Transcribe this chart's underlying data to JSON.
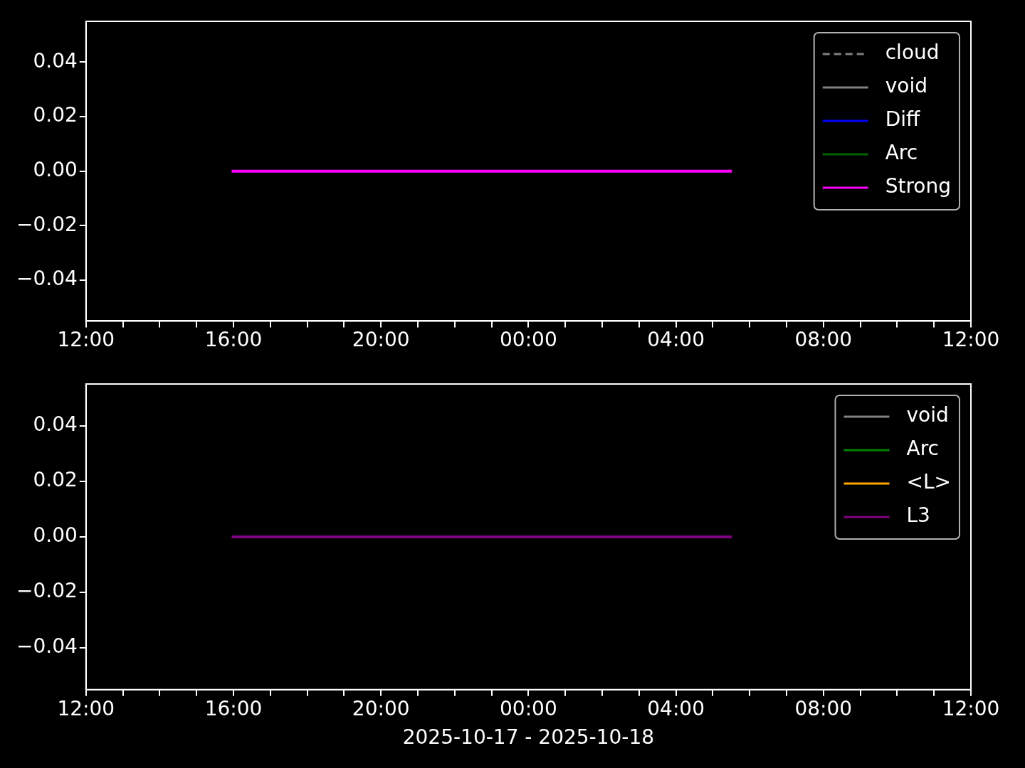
{
  "chart_data": [
    {
      "type": "line",
      "legend": "top right",
      "x": [
        "2025-10-17T15:57",
        "2025-10-18T05:31"
      ],
      "xlim": [
        "2025-10-17T12:00",
        "2025-10-18T12:00"
      ],
      "xticks": [
        {
          "value": "2025-10-17T12:00",
          "label": "12:00"
        },
        {
          "value": "2025-10-17T13:00",
          "label": null
        },
        {
          "value": "2025-10-17T14:00",
          "label": null
        },
        {
          "value": "2025-10-17T15:00",
          "label": null
        },
        {
          "value": "2025-10-17T16:00",
          "label": "16:00"
        },
        {
          "value": "2025-10-17T17:00",
          "label": null
        },
        {
          "value": "2025-10-17T18:00",
          "label": null
        },
        {
          "value": "2025-10-17T19:00",
          "label": null
        },
        {
          "value": "2025-10-17T20:00",
          "label": "20:00"
        },
        {
          "value": "2025-10-17T21:00",
          "label": null
        },
        {
          "value": "2025-10-17T22:00",
          "label": null
        },
        {
          "value": "2025-10-17T23:00",
          "label": null
        },
        {
          "value": "2025-10-18T00:00",
          "label": "00:00"
        },
        {
          "value": "2025-10-18T01:00",
          "label": null
        },
        {
          "value": "2025-10-18T02:00",
          "label": null
        },
        {
          "value": "2025-10-18T03:00",
          "label": null
        },
        {
          "value": "2025-10-18T04:00",
          "label": "04:00"
        },
        {
          "value": "2025-10-18T05:00",
          "label": null
        },
        {
          "value": "2025-10-18T06:00",
          "label": null
        },
        {
          "value": "2025-10-18T07:00",
          "label": null
        },
        {
          "value": "2025-10-18T08:00",
          "label": "08:00"
        },
        {
          "value": "2025-10-18T09:00",
          "label": null
        },
        {
          "value": "2025-10-18T10:00",
          "label": null
        },
        {
          "value": "2025-10-18T11:00",
          "label": null
        },
        {
          "value": "2025-10-18T12:00",
          "label": "12:00"
        }
      ],
      "ylim": [
        -0.055,
        0.055
      ],
      "yticks": [
        {
          "value": -0.04,
          "label": "−0.04"
        },
        {
          "value": -0.02,
          "label": "−0.02"
        },
        {
          "value": 0,
          "label": "0.00"
        },
        {
          "value": 0.02,
          "label": "0.02"
        },
        {
          "value": 0.04,
          "label": "0.04"
        }
      ],
      "series": [
        {
          "name": "cloud",
          "color": "#808080",
          "line_style": "dashed",
          "values": [
            null,
            null
          ]
        },
        {
          "name": "void",
          "color": "#808080",
          "values": [
            null,
            null
          ]
        },
        {
          "name": "Diff",
          "color": "#0000ff",
          "values": [
            null,
            null
          ]
        },
        {
          "name": "Arc",
          "color": "#006400",
          "values": [
            null,
            null
          ]
        },
        {
          "name": "Strong",
          "color": "#ff00ff",
          "values": [
            0,
            0
          ]
        }
      ]
    },
    {
      "type": "line",
      "legend": "top right",
      "xlabel": "2025-10-17 - 2025-10-18",
      "x": [
        "2025-10-17T15:57",
        "2025-10-18T05:31"
      ],
      "xlim": [
        "2025-10-17T12:00",
        "2025-10-18T12:00"
      ],
      "xticks": [
        {
          "value": "2025-10-17T12:00",
          "label": "12:00"
        },
        {
          "value": "2025-10-17T13:00",
          "label": null
        },
        {
          "value": "2025-10-17T14:00",
          "label": null
        },
        {
          "value": "2025-10-17T15:00",
          "label": null
        },
        {
          "value": "2025-10-17T16:00",
          "label": "16:00"
        },
        {
          "value": "2025-10-17T17:00",
          "label": null
        },
        {
          "value": "2025-10-17T18:00",
          "label": null
        },
        {
          "value": "2025-10-17T19:00",
          "label": null
        },
        {
          "value": "2025-10-17T20:00",
          "label": "20:00"
        },
        {
          "value": "2025-10-17T21:00",
          "label": null
        },
        {
          "value": "2025-10-17T22:00",
          "label": null
        },
        {
          "value": "2025-10-17T23:00",
          "label": null
        },
        {
          "value": "2025-10-18T00:00",
          "label": "00:00"
        },
        {
          "value": "2025-10-18T01:00",
          "label": null
        },
        {
          "value": "2025-10-18T02:00",
          "label": null
        },
        {
          "value": "2025-10-18T03:00",
          "label": null
        },
        {
          "value": "2025-10-18T04:00",
          "label": "04:00"
        },
        {
          "value": "2025-10-18T05:00",
          "label": null
        },
        {
          "value": "2025-10-18T06:00",
          "label": null
        },
        {
          "value": "2025-10-18T07:00",
          "label": null
        },
        {
          "value": "2025-10-18T08:00",
          "label": "08:00"
        },
        {
          "value": "2025-10-18T09:00",
          "label": null
        },
        {
          "value": "2025-10-18T10:00",
          "label": null
        },
        {
          "value": "2025-10-18T11:00",
          "label": null
        },
        {
          "value": "2025-10-18T12:00",
          "label": "12:00"
        }
      ],
      "ylim": [
        -0.055,
        0.055
      ],
      "yticks": [
        {
          "value": -0.04,
          "label": "−0.04"
        },
        {
          "value": -0.02,
          "label": "−0.02"
        },
        {
          "value": 0,
          "label": "0.00"
        },
        {
          "value": 0.02,
          "label": "0.02"
        },
        {
          "value": 0.04,
          "label": "0.04"
        }
      ],
      "series": [
        {
          "name": "void",
          "color": "#808080",
          "values": [
            null,
            null
          ]
        },
        {
          "name": "Arc",
          "color": "#008000",
          "values": [
            null,
            null
          ]
        },
        {
          "name": "<L>",
          "color": "#ffa500",
          "values": [
            null,
            null
          ]
        },
        {
          "name": "L3",
          "color": "#800080",
          "values": [
            0,
            0
          ]
        }
      ]
    }
  ]
}
